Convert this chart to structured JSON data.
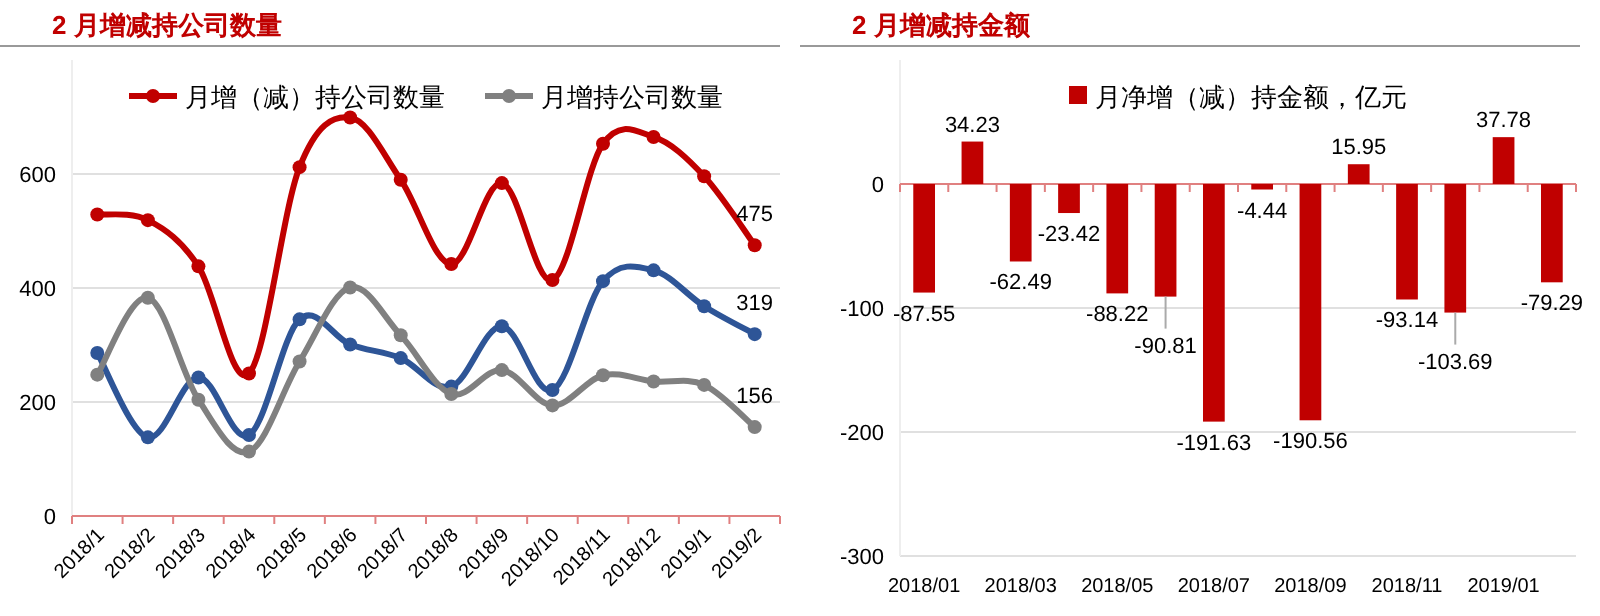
{
  "chart_data": [
    {
      "type": "line",
      "title": "2 月增减持公司数量",
      "categories": [
        "2018/1",
        "2018/2",
        "2018/3",
        "2018/4",
        "2018/5",
        "2018/6",
        "2018/7",
        "2018/8",
        "2018/9",
        "2018/10",
        "2018/11",
        "2018/12",
        "2019/1",
        "2019/2"
      ],
      "series": [
        {
          "name": "月增（减）持公司数量",
          "color": "#c00000",
          "values": [
            529,
            519,
            438,
            250,
            612,
            699,
            590,
            442,
            584,
            414,
            653,
            665,
            596,
            475
          ],
          "value_labels": [
            null,
            null,
            null,
            null,
            null,
            null,
            null,
            null,
            null,
            null,
            null,
            null,
            null,
            "475"
          ]
        },
        {
          "color": "#2e5597",
          "values": [
            286,
            138,
            243,
            142,
            345,
            301,
            277,
            227,
            333,
            221,
            412,
            431,
            368,
            319
          ],
          "value_labels": [
            null,
            null,
            null,
            null,
            null,
            null,
            null,
            null,
            null,
            null,
            null,
            null,
            null,
            "319"
          ]
        },
        {
          "name": "月增持公司数量",
          "color": "#808080",
          "values": [
            248,
            383,
            204,
            113,
            271,
            401,
            317,
            214,
            256,
            194,
            247,
            236,
            230,
            156
          ],
          "value_labels": [
            null,
            null,
            null,
            null,
            null,
            null,
            null,
            null,
            null,
            null,
            null,
            null,
            null,
            "156"
          ]
        }
      ],
      "ylim": [
        0,
        800
      ],
      "yticks": [
        0,
        200,
        400,
        600
      ],
      "grid": "y",
      "legend": "top",
      "marker": "circle"
    },
    {
      "type": "bar",
      "title": "2 月增减持金额",
      "categories": [
        "2018/01",
        null,
        "2018/03",
        null,
        "2018/05",
        null,
        "2018/07",
        null,
        "2018/09",
        null,
        "2018/11",
        null,
        "2019/01",
        null
      ],
      "series": [
        {
          "name": "月净增（减）持金额，亿元",
          "color": "#c00000",
          "values": [
            -87.55,
            34.23,
            -62.49,
            -23.42,
            -88.22,
            -90.81,
            -191.63,
            -4.44,
            -190.56,
            15.95,
            -93.14,
            -103.69,
            37.78,
            -79.29
          ]
        }
      ],
      "ylim": [
        -300,
        100
      ],
      "yticks": [
        -300,
        -200,
        -100,
        0
      ],
      "grid": "y",
      "legend": "top",
      "data_labels": true,
      "ref_lines": [
        {
          "axis": "y",
          "value": 0,
          "color": "#e08080"
        }
      ]
    }
  ]
}
